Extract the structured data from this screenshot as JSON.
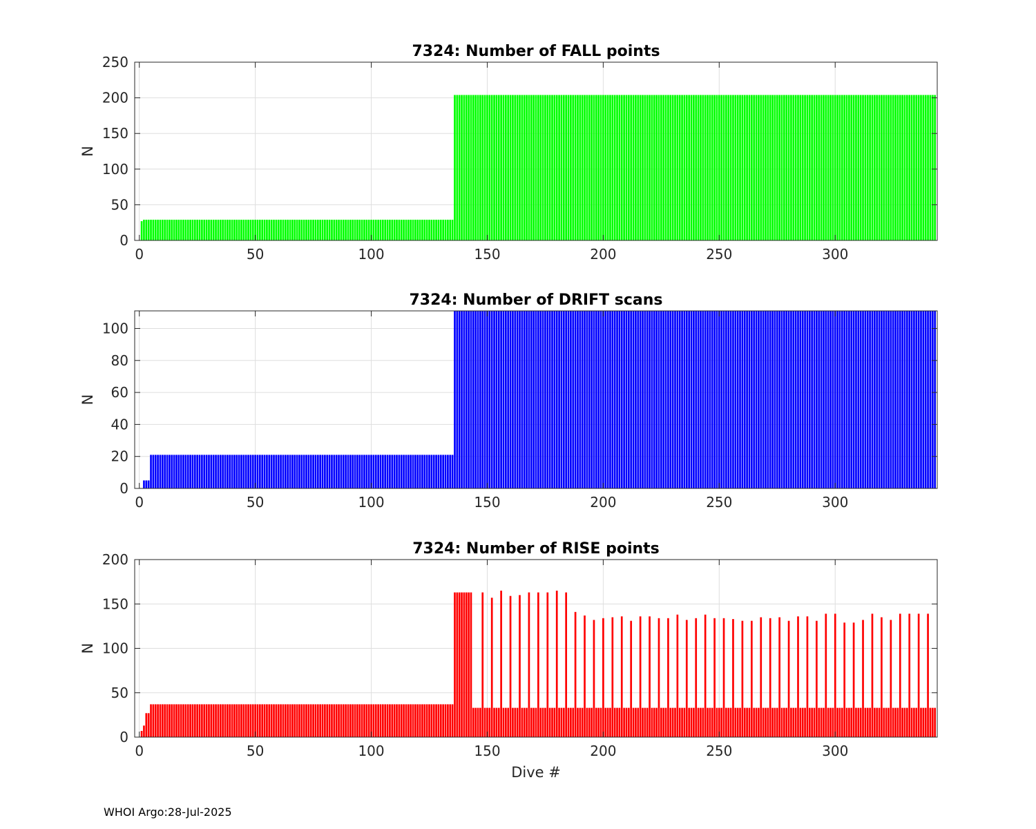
{
  "footer": "WHOI Argo:28-Jul-2025",
  "chart_data": [
    {
      "type": "bar",
      "title": "7324: Number of FALL points",
      "ylabel": "N",
      "xlabel": "",
      "xlim": [
        -2,
        344
      ],
      "ylim": [
        0,
        250
      ],
      "xticks": [
        0,
        50,
        100,
        150,
        200,
        250,
        300
      ],
      "yticks": [
        0,
        50,
        100,
        150,
        200,
        250
      ],
      "grid": true,
      "color": "#00ff00",
      "segments": [
        {
          "from": 1,
          "to": 1,
          "value": 27
        },
        {
          "from": 2,
          "to": 135,
          "value": 29
        },
        {
          "from": 136,
          "to": 343,
          "value": 204
        }
      ]
    },
    {
      "type": "bar",
      "title": "7324: Number of DRIFT scans",
      "ylabel": "N",
      "xlabel": "",
      "xlim": [
        -2,
        344
      ],
      "ylim": [
        0,
        111
      ],
      "xticks": [
        0,
        50,
        100,
        150,
        200,
        250,
        300
      ],
      "yticks": [
        0,
        20,
        40,
        60,
        80,
        100
      ],
      "grid": true,
      "color": "#0000ff",
      "segments": [
        {
          "from": 1,
          "to": 1,
          "value": 0
        },
        {
          "from": 2,
          "to": 4,
          "value": 5
        },
        {
          "from": 5,
          "to": 135,
          "value": 21
        },
        {
          "from": 136,
          "to": 343,
          "value": 111
        }
      ]
    },
    {
      "type": "bar",
      "title": "7324: Number of RISE points",
      "ylabel": "N",
      "xlabel": "Dive #",
      "xlim": [
        -2,
        344
      ],
      "ylim": [
        0,
        200
      ],
      "xticks": [
        0,
        50,
        100,
        150,
        200,
        250,
        300
      ],
      "yticks": [
        0,
        50,
        100,
        150,
        200
      ],
      "grid": true,
      "color": "#ff0000",
      "segments": [
        {
          "from": 1,
          "to": 1,
          "value": 7
        },
        {
          "from": 2,
          "to": 2,
          "value": 13
        },
        {
          "from": 3,
          "to": 4,
          "value": 27
        },
        {
          "from": 5,
          "to": 135,
          "value": 37
        },
        {
          "from": 136,
          "to": 143,
          "value": 163
        },
        {
          "from": 144,
          "to": 343,
          "value": 33
        }
      ],
      "peaks": [
        {
          "x": 148,
          "value": 163
        },
        {
          "x": 152,
          "value": 157
        },
        {
          "x": 156,
          "value": 165
        },
        {
          "x": 160,
          "value": 159
        },
        {
          "x": 164,
          "value": 160
        },
        {
          "x": 168,
          "value": 163
        },
        {
          "x": 172,
          "value": 163
        },
        {
          "x": 176,
          "value": 163
        },
        {
          "x": 180,
          "value": 165
        },
        {
          "x": 184,
          "value": 163
        },
        {
          "x": 188,
          "value": 141
        },
        {
          "x": 192,
          "value": 137
        },
        {
          "x": 196,
          "value": 132
        },
        {
          "x": 200,
          "value": 134
        },
        {
          "x": 204,
          "value": 135
        },
        {
          "x": 208,
          "value": 136
        },
        {
          "x": 212,
          "value": 131
        },
        {
          "x": 216,
          "value": 136
        },
        {
          "x": 220,
          "value": 136
        },
        {
          "x": 224,
          "value": 134
        },
        {
          "x": 228,
          "value": 134
        },
        {
          "x": 232,
          "value": 138
        },
        {
          "x": 236,
          "value": 132
        },
        {
          "x": 240,
          "value": 134
        },
        {
          "x": 244,
          "value": 138
        },
        {
          "x": 248,
          "value": 134
        },
        {
          "x": 252,
          "value": 134
        },
        {
          "x": 256,
          "value": 133
        },
        {
          "x": 260,
          "value": 131
        },
        {
          "x": 264,
          "value": 131
        },
        {
          "x": 268,
          "value": 135
        },
        {
          "x": 272,
          "value": 134
        },
        {
          "x": 276,
          "value": 135
        },
        {
          "x": 280,
          "value": 131
        },
        {
          "x": 284,
          "value": 136
        },
        {
          "x": 288,
          "value": 136
        },
        {
          "x": 292,
          "value": 131
        },
        {
          "x": 296,
          "value": 139
        },
        {
          "x": 300,
          "value": 139
        },
        {
          "x": 304,
          "value": 129
        },
        {
          "x": 308,
          "value": 129
        },
        {
          "x": 312,
          "value": 132
        },
        {
          "x": 316,
          "value": 139
        },
        {
          "x": 320,
          "value": 135
        },
        {
          "x": 324,
          "value": 132
        },
        {
          "x": 328,
          "value": 139
        },
        {
          "x": 332,
          "value": 139
        },
        {
          "x": 336,
          "value": 139
        },
        {
          "x": 340,
          "value": 139
        }
      ]
    }
  ]
}
